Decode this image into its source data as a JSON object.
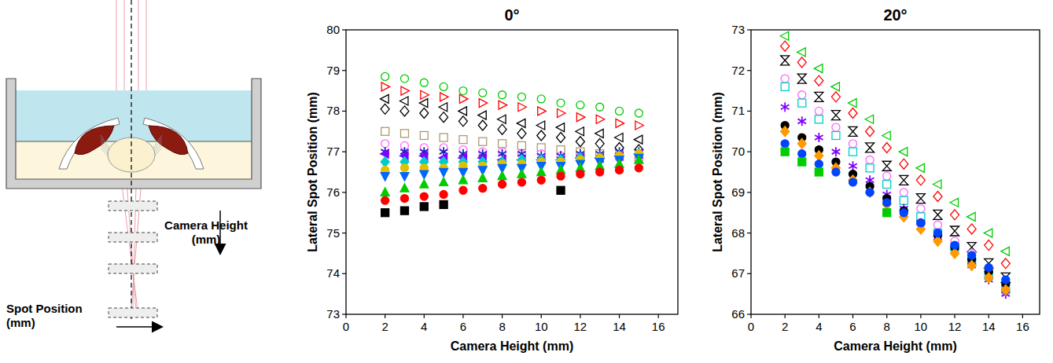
{
  "diagram": {
    "labels": [
      "Camera Height (mm)",
      "Spot Position (mm)"
    ]
  },
  "chart_data": [
    {
      "type": "scatter",
      "title": "0°",
      "x_label": "Camera Height (mm)",
      "y_label": "Lateral Spot Position (mm)",
      "xlim": [
        0,
        17
      ],
      "ylim": [
        73,
        80
      ],
      "xticks": [
        0,
        2,
        4,
        6,
        8,
        10,
        12,
        14,
        16
      ],
      "yticks": [
        73,
        74,
        75,
        76,
        77,
        78,
        79,
        80
      ],
      "grid": false,
      "x": [
        2,
        3,
        4,
        5,
        6,
        7,
        8,
        9,
        10,
        11,
        12,
        13,
        14,
        15
      ],
      "series": [
        {
          "color": "#00cc00",
          "marker": "circle-open",
          "values": [
            78.85,
            78.8,
            78.7,
            78.6,
            78.5,
            78.45,
            78.4,
            78.35,
            78.3,
            78.2,
            78.15,
            78.1,
            78.0,
            77.95
          ]
        },
        {
          "color": "#ff0000",
          "marker": "triangle-right-open",
          "values": [
            78.6,
            78.5,
            78.4,
            78.35,
            78.3,
            78.2,
            78.15,
            78.1,
            78.0,
            77.95,
            77.85,
            77.8,
            77.7,
            77.65
          ]
        },
        {
          "color": "#000000",
          "marker": "triangle-left-open",
          "values": [
            78.3,
            78.25,
            78.2,
            78.1,
            78.0,
            77.9,
            77.8,
            77.7,
            77.65,
            77.6,
            77.5,
            77.45,
            77.35,
            77.3
          ]
        },
        {
          "color": "#000000",
          "marker": "diamond-open",
          "values": [
            78.05,
            78.0,
            77.95,
            77.85,
            77.75,
            77.65,
            77.55,
            77.45,
            77.4,
            77.35,
            77.25,
            77.2,
            77.1,
            77.05
          ]
        },
        {
          "color": "#b09a70",
          "marker": "square-open",
          "values": [
            77.5,
            77.45,
            77.4,
            77.35,
            77.3,
            77.25,
            77.2,
            77.15,
            77.1,
            77.05,
            77.0,
            76.95,
            76.9,
            76.85
          ]
        },
        {
          "color": "#ff66ff",
          "marker": "circle-open",
          "values": [
            77.2,
            77.15,
            77.1,
            77.1,
            77.05,
            77.0,
            77.0,
            76.95,
            76.95,
            76.9,
            76.9,
            76.85,
            76.85,
            76.8
          ]
        },
        {
          "color": "#2020c0",
          "marker": "star",
          "values": [
            77.0,
            77.0,
            77.0,
            77.0,
            76.95,
            76.95,
            76.95,
            76.95,
            76.9,
            76.9,
            76.95,
            76.95,
            77.0,
            77.0
          ]
        },
        {
          "color": "#8000ff",
          "marker": "triangle-left",
          "values": [
            76.95,
            76.9,
            76.9,
            76.85,
            76.85,
            76.85,
            76.8,
            76.8,
            76.8,
            76.8,
            76.85,
            76.85,
            76.9,
            76.95
          ]
        },
        {
          "color": "#00cccc",
          "marker": "diamond",
          "values": [
            76.75,
            76.75,
            76.75,
            76.75,
            76.75,
            76.75,
            76.75,
            76.8,
            76.8,
            76.8,
            76.85,
            76.85,
            76.9,
            76.95
          ]
        },
        {
          "color": "#e0c000",
          "marker": "circle",
          "values": [
            76.55,
            76.6,
            76.6,
            76.6,
            76.65,
            76.65,
            76.7,
            76.7,
            76.75,
            76.75,
            76.8,
            76.85,
            76.9,
            76.95
          ]
        },
        {
          "color": "#0066ff",
          "marker": "triangle-down",
          "values": [
            76.4,
            76.4,
            76.45,
            76.5,
            76.5,
            76.55,
            76.6,
            76.6,
            76.65,
            76.65,
            76.7,
            76.75,
            76.8,
            76.85
          ]
        },
        {
          "color": "#00cc00",
          "marker": "triangle-up",
          "values": [
            76.0,
            76.1,
            76.2,
            76.25,
            76.3,
            76.35,
            76.4,
            76.45,
            76.5,
            76.55,
            76.6,
            76.65,
            76.7,
            76.8
          ]
        },
        {
          "color": "#ff0000",
          "marker": "circle",
          "values": [
            75.8,
            75.85,
            75.9,
            75.95,
            76.05,
            76.1,
            76.2,
            76.25,
            76.3,
            76.4,
            76.45,
            76.5,
            76.55,
            76.6
          ]
        },
        {
          "color": "#000000",
          "marker": "square",
          "values": [
            75.5,
            75.55,
            75.65,
            75.7,
            null,
            null,
            null,
            null,
            null,
            76.05,
            null,
            null,
            null,
            null
          ]
        }
      ]
    },
    {
      "type": "scatter",
      "title": "20°",
      "x_label": "Camera Height (mm)",
      "y_label": "Lateral Spot Position (mm)",
      "xlim": [
        0,
        17
      ],
      "ylim": [
        66,
        73
      ],
      "xticks": [
        0,
        2,
        4,
        6,
        8,
        10,
        12,
        14,
        16
      ],
      "yticks": [
        66,
        67,
        68,
        69,
        70,
        71,
        72,
        73
      ],
      "grid": false,
      "x": [
        2,
        3,
        4,
        5,
        6,
        7,
        8,
        9,
        10,
        11,
        12,
        13,
        14,
        15
      ],
      "series": [
        {
          "color": "#00cc00",
          "marker": "triangle-left-open",
          "values": [
            72.85,
            72.45,
            72.05,
            71.6,
            71.2,
            70.8,
            70.4,
            70.0,
            69.6,
            69.2,
            68.75,
            68.4,
            68.0,
            67.55
          ]
        },
        {
          "color": "#ff0000",
          "marker": "diamond-open",
          "values": [
            72.6,
            72.2,
            71.75,
            71.35,
            70.95,
            70.5,
            70.1,
            69.7,
            69.3,
            68.9,
            68.45,
            68.1,
            67.7,
            67.25
          ]
        },
        {
          "color": "#000000",
          "marker": "hourglass-open",
          "values": [
            72.25,
            71.8,
            71.35,
            70.9,
            70.5,
            70.1,
            69.65,
            69.3,
            68.85,
            68.45,
            68.05,
            67.65,
            67.25,
            66.9
          ]
        },
        {
          "color": "#ff66ff",
          "marker": "circle-open",
          "values": [
            71.8,
            71.4,
            71.0,
            70.6,
            70.2,
            69.8,
            69.4,
            69.0,
            68.6,
            68.2,
            67.8,
            67.5,
            67.1,
            66.75
          ]
        },
        {
          "color": "#00cccc",
          "marker": "square-open",
          "values": [
            71.6,
            71.2,
            70.8,
            70.4,
            70.0,
            69.6,
            69.2,
            68.8,
            68.4,
            68.0,
            67.65,
            67.3,
            66.95,
            66.6
          ]
        },
        {
          "color": "#8000ff",
          "marker": "star",
          "values": [
            71.1,
            70.75,
            70.35,
            70.0,
            69.65,
            69.3,
            68.95,
            68.6,
            68.25,
            67.9,
            67.55,
            67.2,
            66.85,
            66.5
          ]
        },
        {
          "color": "#000000",
          "marker": "circle",
          "values": [
            70.65,
            70.35,
            70.05,
            69.75,
            69.45,
            69.15,
            68.85,
            68.55,
            68.25,
            67.95,
            67.65,
            67.35,
            67.05,
            66.75
          ]
        },
        {
          "color": "#ff9900",
          "marker": "diamond",
          "values": [
            70.5,
            70.2,
            69.9,
            69.6,
            69.3,
            69.0,
            68.7,
            68.4,
            68.1,
            67.8,
            67.5,
            67.2,
            66.9,
            66.6
          ]
        },
        {
          "color": "#0044ff",
          "marker": "circle",
          "values": [
            70.2,
            69.95,
            69.7,
            69.5,
            69.25,
            69.0,
            68.75,
            68.5,
            68.25,
            68.0,
            67.7,
            67.45,
            67.15,
            66.85
          ]
        },
        {
          "color": "#00cc00",
          "marker": "square",
          "values": [
            70.0,
            69.75,
            69.5,
            null,
            null,
            null,
            68.5,
            null,
            null,
            null,
            null,
            null,
            null,
            null
          ]
        }
      ]
    }
  ]
}
